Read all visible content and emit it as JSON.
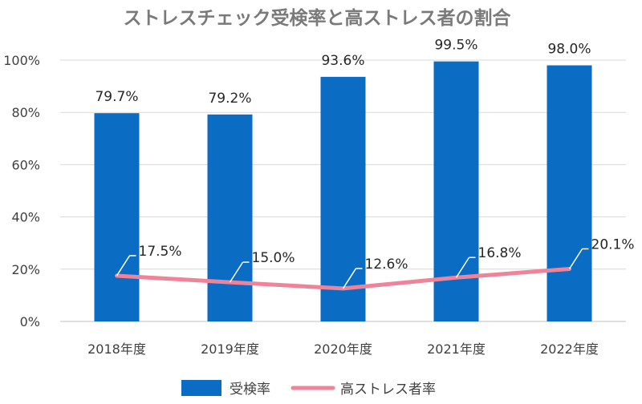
{
  "chart_data": {
    "type": "bar",
    "title": "ストレスチェック受検率と高ストレス者の割合",
    "categories": [
      "2018年度",
      "2019年度",
      "2020年度",
      "2021年度",
      "2022年度"
    ],
    "series": [
      {
        "name": "受検率",
        "type": "bar",
        "color": "#0a6cc2",
        "values": [
          79.7,
          79.2,
          93.6,
          99.5,
          98.0
        ],
        "labels": [
          "79.7%",
          "79.2%",
          "93.6%",
          "99.5%",
          "98.0%"
        ]
      },
      {
        "name": "高ストレス者率",
        "type": "line",
        "color": "#ef8399",
        "values": [
          17.5,
          15.0,
          12.6,
          16.8,
          20.1
        ],
        "labels": [
          "17.5%",
          "15.0%",
          "12.6%",
          "16.8%",
          "20.1%"
        ]
      }
    ],
    "ylim": [
      0,
      100
    ],
    "yticks": [
      "0%",
      "20%",
      "40%",
      "60%",
      "80%",
      "100%"
    ],
    "grid": true,
    "legend": "bottom"
  }
}
